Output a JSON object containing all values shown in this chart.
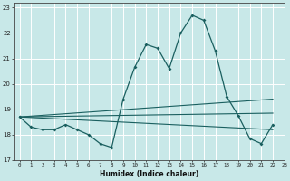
{
  "title": "",
  "xlabel": "Humidex (Indice chaleur)",
  "ylabel": "",
  "background_color": "#c8e8e8",
  "grid_color": "#ffffff",
  "line_color": "#1a5f5f",
  "xlim": [
    -0.5,
    23
  ],
  "ylim": [
    17,
    23.2
  ],
  "yticks": [
    17,
    18,
    19,
    20,
    21,
    22,
    23
  ],
  "xticks": [
    0,
    1,
    2,
    3,
    4,
    5,
    6,
    7,
    8,
    9,
    10,
    11,
    12,
    13,
    14,
    15,
    16,
    17,
    18,
    19,
    20,
    21,
    22,
    23
  ],
  "main_x": [
    0,
    1,
    2,
    3,
    4,
    5,
    6,
    7,
    8,
    9,
    10,
    11,
    12,
    13,
    14,
    15,
    16,
    17,
    18,
    19,
    20,
    21,
    22
  ],
  "main_y": [
    18.7,
    18.3,
    18.2,
    18.2,
    18.4,
    18.2,
    18.0,
    17.65,
    17.5,
    19.4,
    20.65,
    21.55,
    21.4,
    20.6,
    22.0,
    22.7,
    22.5,
    21.3,
    19.5,
    18.75,
    17.85,
    17.65,
    18.4
  ],
  "line2_x": [
    0,
    22
  ],
  "line2_y": [
    18.7,
    19.4
  ],
  "line3_x": [
    0,
    22
  ],
  "line3_y": [
    18.7,
    18.85
  ],
  "line4_x": [
    0,
    22
  ],
  "line4_y": [
    18.7,
    18.2
  ]
}
